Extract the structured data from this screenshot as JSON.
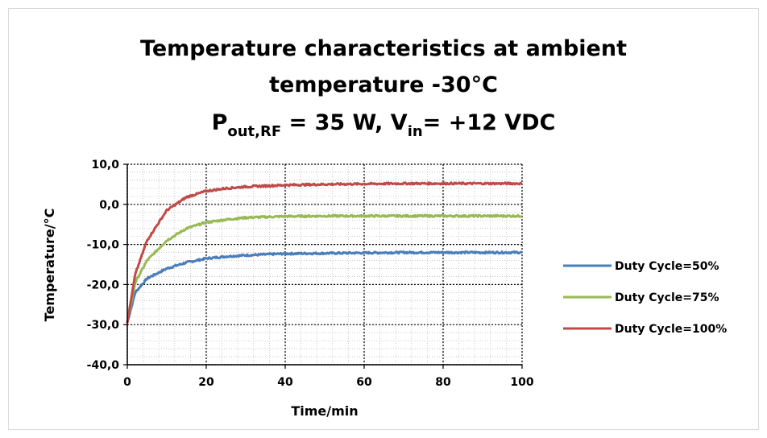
{
  "chart_data": {
    "type": "line",
    "title": {
      "line1": "Temperature characteristics at ambient",
      "line2": "temperature -30°C",
      "line3_parts": [
        "P",
        "out,RF",
        " = 35 W, V",
        "in",
        "= +12 VDC"
      ]
    },
    "xlabel": "Time/min",
    "ylabel": "Temperature/°C",
    "xlim": [
      0,
      100
    ],
    "ylim": [
      -40,
      10
    ],
    "x_ticks": [
      "0",
      "20",
      "40",
      "60",
      "80",
      "100"
    ],
    "y_ticks": [
      "10,0",
      "0,0",
      "-10,0",
      "-20,0",
      "-30,0",
      "-40,0"
    ],
    "grid": true,
    "legend_position": "right",
    "series": [
      {
        "name": "Duty Cycle=50%",
        "color": "#4a7ebb",
        "x": [
          0,
          2,
          5,
          10,
          15,
          20,
          25,
          30,
          40,
          50,
          60,
          70,
          80,
          90,
          100
        ],
        "y": [
          -29.5,
          -22,
          -18.5,
          -16,
          -14.5,
          -13.5,
          -13,
          -12.7,
          -12.3,
          -12.2,
          -12.1,
          -12.0,
          -12.0,
          -12.0,
          -12.0
        ]
      },
      {
        "name": "Duty Cycle=75%",
        "color": "#98b954",
        "x": [
          0,
          2,
          5,
          10,
          15,
          20,
          25,
          30,
          40,
          50,
          60,
          70,
          80,
          90,
          100
        ],
        "y": [
          -29.5,
          -19.5,
          -14,
          -9,
          -6,
          -4.5,
          -3.8,
          -3.3,
          -3.0,
          -2.9,
          -2.9,
          -2.9,
          -2.9,
          -2.9,
          -2.9
        ]
      },
      {
        "name": "Duty Cycle=100%",
        "color": "#be4b48",
        "x": [
          0,
          2,
          5,
          10,
          15,
          20,
          25,
          30,
          40,
          50,
          60,
          70,
          80,
          90,
          100
        ],
        "y": [
          -29.5,
          -17.5,
          -9,
          -1.5,
          1.8,
          3.3,
          4.0,
          4.4,
          4.8,
          5.0,
          5.1,
          5.2,
          5.2,
          5.2,
          5.2
        ]
      }
    ]
  }
}
